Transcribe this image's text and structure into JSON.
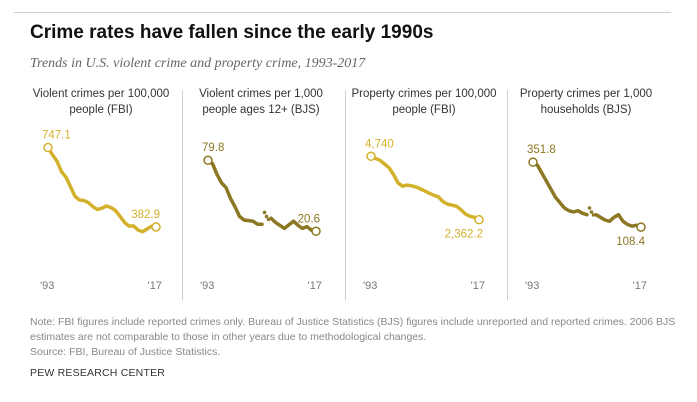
{
  "header": {
    "title": "Crime rates have fallen since the early 1990s",
    "subtitle": "Trends in U.S. violent crime and property crime, 1993-2017"
  },
  "colors": {
    "fbi": "#d3b12b",
    "bjs": "#8c7722",
    "tick": "#777777"
  },
  "chart_data": [
    {
      "type": "line",
      "title": "Violent crimes per 100,000 people (FBI)",
      "x": [
        1993,
        1994,
        1995,
        1996,
        1997,
        1998,
        1999,
        2000,
        2001,
        2002,
        2003,
        2004,
        2005,
        2006,
        2007,
        2008,
        2009,
        2010,
        2011,
        2012,
        2013,
        2014,
        2015,
        2016,
        2017
      ],
      "series": [
        {
          "values": [
            747.1,
            713.6,
            684.5,
            636.6,
            611.0,
            567.6,
            523.0,
            506.5,
            504.5,
            494.4,
            475.8,
            463.2,
            469.0,
            479.3,
            471.8,
            458.6,
            431.9,
            404.5,
            387.1,
            387.8,
            369.1,
            361.6,
            373.7,
            386.3,
            382.9
          ],
          "color": "fbi"
        }
      ],
      "ylim": [
        250,
        800
      ],
      "start_label": "747.1",
      "end_label": "382.9",
      "tick_labels": [
        "'93",
        "'17"
      ]
    },
    {
      "type": "line",
      "title": "Violent crimes per 1,000 people ages 12+ (BJS)",
      "x": [
        1993,
        1994,
        1995,
        1996,
        1997,
        1998,
        1999,
        2000,
        2001,
        2002,
        2003,
        2004,
        2005,
        2006,
        2007,
        2008,
        2009,
        2010,
        2011,
        2012,
        2013,
        2014,
        2015,
        2016,
        2017
      ],
      "series": [
        {
          "values": [
            79.8,
            77.0,
            68.0,
            61.0,
            57.0,
            48.0,
            41.0,
            33.0,
            30.0,
            29.5,
            29.0,
            26.5,
            26.5,
            33.0,
            31.5,
            28.0,
            25.5,
            23.0,
            26.0,
            29.0,
            25.5,
            23.0,
            24.5,
            21.5,
            20.6
          ],
          "color": "bjs",
          "dotted_year": 2006
        }
      ],
      "ylim": [
        0,
        100
      ],
      "start_label": "79.8",
      "end_label": "20.6",
      "tick_labels": [
        "'93",
        "'17"
      ]
    },
    {
      "type": "line",
      "title": "Property crimes per 100,000 people (FBI)",
      "x": [
        1993,
        1994,
        1995,
        1996,
        1997,
        1998,
        1999,
        2000,
        2001,
        2002,
        2003,
        2004,
        2005,
        2006,
        2007,
        2008,
        2009,
        2010,
        2011,
        2012,
        2013,
        2014,
        2015,
        2016,
        2017
      ],
      "series": [
        {
          "values": [
            4740,
            4660,
            4590,
            4450,
            4311,
            4052,
            3744,
            3618,
            3658,
            3631,
            3591,
            3514,
            3432,
            3346,
            3276,
            3214,
            3041,
            2946,
            2905,
            2868,
            2734,
            2574,
            2487,
            2451,
            2362.2
          ],
          "color": "fbi"
        }
      ],
      "ylim": [
        1000,
        5500
      ],
      "start_label": "4,740",
      "end_label": "2,362.2",
      "tick_labels": [
        "'93",
        "'17"
      ]
    },
    {
      "type": "line",
      "title": "Property crimes per 1,000 households (BJS)",
      "x": [
        1993,
        1994,
        1995,
        1996,
        1997,
        1998,
        1999,
        2000,
        2001,
        2002,
        2003,
        2004,
        2005,
        2006,
        2007,
        2008,
        2009,
        2010,
        2011,
        2012,
        2013,
        2014,
        2015,
        2016,
        2017
      ],
      "series": [
        {
          "values": [
            351.8,
            340.0,
            310.0,
            280.0,
            250.0,
            220.0,
            200.0,
            180.0,
            170.0,
            165.0,
            170.0,
            160.0,
            155.0,
            165.0,
            155.0,
            145.0,
            135.0,
            130.0,
            145.0,
            155.0,
            130.0,
            118.0,
            112.0,
            115.0,
            108.4
          ],
          "color": "bjs",
          "dotted_year": 2006
        }
      ],
      "ylim": [
        0,
        450
      ],
      "start_label": "351.8",
      "end_label": "108.4",
      "tick_labels": [
        "'93",
        "'17"
      ]
    }
  ],
  "footer": {
    "note": "Note: FBI figures include reported crimes only. Bureau of Justice Statistics (BJS) figures include unreported and reported crimes. 2006 BJS estimates are not comparable to those in other years due to methodological changes.",
    "source": "Source: FBI, Bureau of Justice Statistics.",
    "brand": "PEW RESEARCH CENTER"
  }
}
